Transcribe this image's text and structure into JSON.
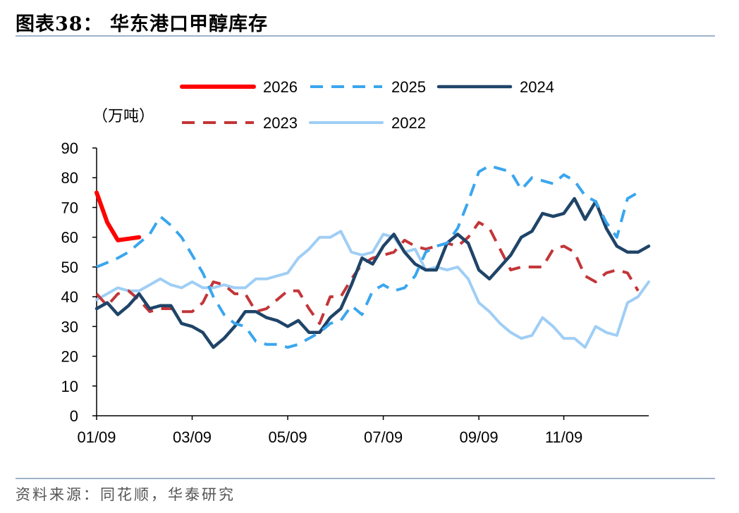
{
  "figure": {
    "title": "图表38：  华东港口甲醇库存",
    "source": "资料来源：同花顺，华泰研究"
  },
  "chart_data": {
    "type": "line",
    "title": "华东港口甲醇库存",
    "unit_label": "（万吨）",
    "xlabel": "",
    "ylabel": "（万吨）",
    "ylim": [
      0,
      90
    ],
    "yticks": [
      0,
      10,
      20,
      30,
      40,
      50,
      60,
      70,
      80,
      90
    ],
    "xlim": [
      1,
      53
    ],
    "xtick_labels": [
      "01/09",
      "03/09",
      "05/09",
      "07/09",
      "09/09",
      "11/09"
    ],
    "xtick_weeks": [
      1,
      10,
      19,
      28,
      37,
      45
    ],
    "legend": "top, two rows",
    "grid": false,
    "series": [
      {
        "name": "2026",
        "color": "#ff0000",
        "style": "solid",
        "width": 6,
        "x": [
          1,
          2,
          3,
          4,
          5
        ],
        "values": [
          75,
          65,
          59,
          59.5,
          60
        ]
      },
      {
        "name": "2025",
        "color": "#3aa6ee",
        "style": "dashed",
        "width": 4,
        "x": [
          1,
          2,
          3,
          4,
          5,
          6,
          7,
          8,
          9,
          10,
          11,
          12,
          13,
          14,
          15,
          16,
          17,
          18,
          19,
          20,
          21,
          22,
          23,
          24,
          25,
          26,
          27,
          28,
          29,
          30,
          31,
          32,
          33,
          34,
          35,
          36,
          37,
          38,
          39,
          40,
          41,
          42,
          43,
          44,
          45,
          46,
          47,
          48,
          49,
          50,
          51,
          52
        ],
        "values": [
          50,
          51.5,
          53,
          55,
          58,
          61,
          67,
          64,
          60,
          54,
          48,
          40,
          34,
          31,
          30,
          25,
          24,
          24,
          23,
          24,
          26,
          28,
          31,
          32,
          37,
          34,
          42,
          44,
          42,
          43,
          47,
          55,
          57,
          58,
          63,
          72,
          82,
          84,
          83,
          82,
          76,
          80,
          79,
          78,
          81,
          79,
          74,
          72,
          65,
          60,
          73,
          75
        ]
      },
      {
        "name": "2024",
        "color": "#1f4468",
        "style": "solid",
        "width": 4.5,
        "x": [
          1,
          2,
          3,
          4,
          5,
          6,
          7,
          8,
          9,
          10,
          11,
          12,
          13,
          14,
          15,
          16,
          17,
          18,
          19,
          20,
          21,
          22,
          23,
          24,
          25,
          26,
          27,
          28,
          29,
          30,
          31,
          32,
          33,
          34,
          35,
          36,
          37,
          38,
          39,
          40,
          41,
          42,
          43,
          44,
          45,
          46,
          47,
          48,
          49,
          50,
          51,
          52,
          53
        ],
        "values": [
          36,
          38,
          34,
          37,
          41,
          36,
          37,
          37,
          31,
          30,
          28,
          23,
          26,
          30,
          35,
          35,
          33,
          32,
          30,
          32,
          28,
          28,
          33,
          36,
          44,
          53,
          51,
          57,
          61,
          55,
          51,
          49,
          49,
          58,
          61,
          58,
          49,
          46,
          50,
          54,
          60,
          62,
          68,
          67,
          68,
          73,
          66,
          72,
          63,
          57,
          55,
          55,
          57
        ]
      },
      {
        "name": "2023",
        "color": "#c33538",
        "style": "dashed",
        "width": 4,
        "x": [
          1,
          2,
          3,
          4,
          5,
          6,
          7,
          8,
          9,
          10,
          11,
          12,
          13,
          14,
          15,
          16,
          17,
          18,
          19,
          20,
          21,
          22,
          23,
          24,
          25,
          26,
          27,
          28,
          29,
          30,
          31,
          32,
          33,
          34,
          35,
          36,
          37,
          38,
          39,
          40,
          41,
          42,
          43,
          44,
          45,
          46,
          47,
          48,
          49,
          50,
          51,
          52
        ],
        "values": [
          41,
          37,
          41,
          42,
          39,
          35,
          36,
          36,
          35,
          35,
          38,
          45,
          44,
          41,
          41,
          35,
          36,
          39,
          42,
          42,
          36,
          31,
          40,
          40,
          46,
          51,
          53,
          54,
          55,
          59,
          57,
          56,
          57,
          58,
          57,
          60,
          65,
          63,
          56,
          49,
          50,
          50,
          50,
          56,
          57,
          55,
          47,
          45,
          48,
          49,
          48,
          42
        ]
      },
      {
        "name": "2022",
        "color": "#9fcef5",
        "style": "solid",
        "width": 4,
        "x": [
          1,
          2,
          3,
          4,
          5,
          6,
          7,
          8,
          9,
          10,
          11,
          12,
          13,
          14,
          15,
          16,
          17,
          18,
          19,
          20,
          21,
          22,
          23,
          24,
          25,
          26,
          27,
          28,
          29,
          30,
          31,
          32,
          33,
          34,
          35,
          36,
          37,
          38,
          39,
          40,
          41,
          42,
          43,
          44,
          45,
          46,
          47,
          48,
          49,
          50,
          51,
          52,
          53
        ],
        "values": [
          39,
          41,
          43,
          42,
          42,
          44,
          46,
          44,
          43,
          45,
          43,
          43,
          44,
          43,
          43,
          46,
          46,
          47,
          48,
          53,
          56,
          60,
          60,
          62,
          55,
          54,
          55,
          61,
          60,
          55,
          56,
          49,
          50,
          49,
          50,
          46,
          38,
          35,
          31,
          28,
          26,
          27,
          33,
          30,
          26,
          26,
          23,
          30,
          28,
          27,
          38,
          40,
          45
        ]
      }
    ]
  }
}
